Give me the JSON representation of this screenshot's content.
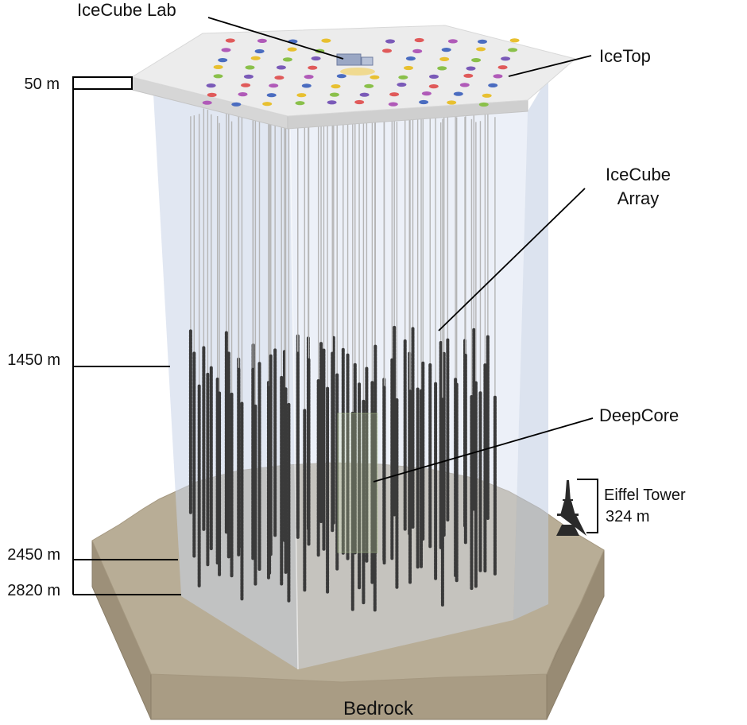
{
  "labels": {
    "icecube_lab": "IceCube Lab",
    "icetop": "IceTop",
    "icecube_array_line1": "IceCube",
    "icecube_array_line2": "Array",
    "deepcore": "DeepCore",
    "eiffel_name": "Eiffel Tower",
    "eiffel_height": "324 m",
    "bedrock": "Bedrock"
  },
  "depths": [
    {
      "label": "50 m",
      "value_m": 50
    },
    {
      "label": "1450 m",
      "value_m": 1450
    },
    {
      "label": "2450 m",
      "value_m": 2450
    },
    {
      "label": "2820 m",
      "value_m": 2820
    }
  ],
  "colors": {
    "bedrock_top": "#b8ad96",
    "bedrock_side": "#9d9079",
    "bedrock_front": "#a99c84",
    "ice_volume": "#c9d4e8",
    "icetop_surface": "#ececec",
    "icetop_edge": "#d0d0d0",
    "string_line": "#b5b5b5",
    "dom": "#3a3a3a",
    "leader": "#000000"
  },
  "icetop_tank_colors": [
    "#e05a5a",
    "#b05ab8",
    "#4a6cc0",
    "#e8c030",
    "#8ac04a",
    "#7a5ab8"
  ]
}
